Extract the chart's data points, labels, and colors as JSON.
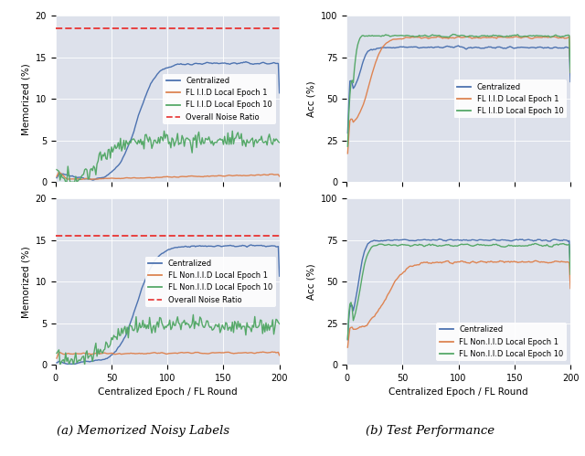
{
  "fig_width": 6.4,
  "fig_height": 4.99,
  "bg_color": "#dde1eb",
  "blue": "#4c72b0",
  "orange": "#dd8452",
  "green": "#55a868",
  "red_dashed": "#e84040",
  "iid_noise_ratio": 18.5,
  "noniid_noise_ratio": 15.5,
  "xlabel": "Centralized Epoch / FL Round",
  "ylabel_mem": "Memorized (%)",
  "ylabel_acc": "Acc (%)",
  "caption_a": "(a) Memorized Noisy Labels",
  "caption_b": "(b) Test Performance",
  "legend_iid_mem": [
    "Centralized",
    "FL I.I.D Local Epoch 1",
    "FL I.I.D Local Epoch 10",
    "Overall Noise Ratio"
  ],
  "legend_noniid_mem": [
    "Centralized",
    "FL Non.I.I.D Local Epoch 1",
    "FL Non.I.I.D Local Epoch 10",
    "Overall Noise Ratio"
  ],
  "legend_iid_acc": [
    "Centralized",
    "FL I.I.D Local Epoch 1",
    "FL I.I.D Local Epoch 10"
  ],
  "legend_noniid_acc": [
    "Centralized",
    "FL Non.I.I.D Local Epoch 1",
    "FL Non.I.I.D Local Epoch 10"
  ],
  "xlim": [
    0,
    200
  ],
  "mem_ylim": [
    0,
    20
  ],
  "acc_ylim": [
    0,
    100
  ],
  "xticks": [
    0,
    50,
    100,
    150,
    200
  ],
  "mem_yticks": [
    0,
    5,
    10,
    15,
    20
  ],
  "acc_yticks": [
    0,
    25,
    50,
    75,
    100
  ]
}
